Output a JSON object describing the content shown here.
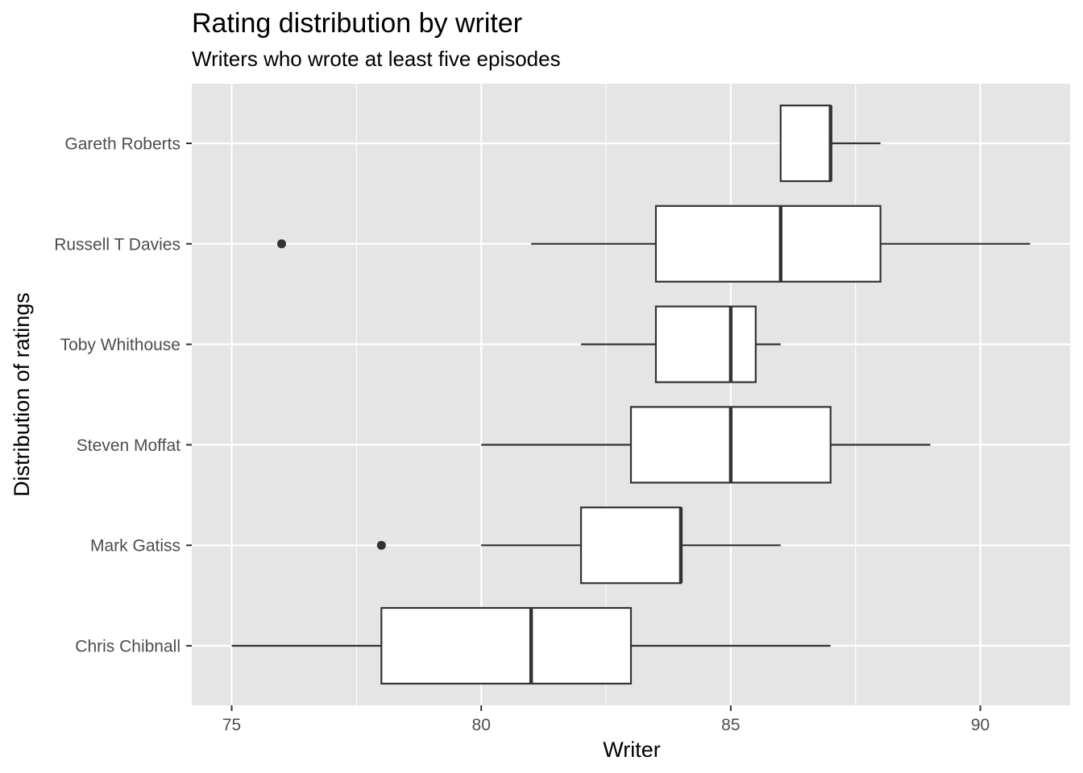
{
  "chart_data": {
    "type": "boxplot",
    "orientation": "horizontal",
    "title": "Rating distribution by writer",
    "subtitle": "Writers who wrote at least five episodes",
    "xlabel": "Writer",
    "ylabel": "Distribution of ratings",
    "xlim": [
      74.2,
      91.8
    ],
    "xticks": [
      75,
      80,
      85,
      90
    ],
    "grid": true,
    "legend": "none",
    "colors": {
      "panel": "#e5e5e5",
      "grid": "#ffffff",
      "box_fill": "#ffffff",
      "box_stroke": "#333333",
      "tick_text": "#4d4d4d"
    },
    "categories": [
      "Gareth Roberts",
      "Russell T Davies",
      "Toby Whithouse",
      "Steven Moffat",
      "Mark Gatiss",
      "Chris Chibnall"
    ],
    "boxes": [
      {
        "name": "Gareth Roberts",
        "whisker_low": 86,
        "q1": 86,
        "median": 87,
        "q3": 87,
        "whisker_high": 88,
        "outliers": []
      },
      {
        "name": "Russell T Davies",
        "whisker_low": 81,
        "q1": 83.5,
        "median": 86,
        "q3": 88,
        "whisker_high": 91,
        "outliers": [
          76
        ]
      },
      {
        "name": "Toby Whithouse",
        "whisker_low": 82,
        "q1": 83.5,
        "median": 85,
        "q3": 85.5,
        "whisker_high": 86,
        "outliers": []
      },
      {
        "name": "Steven Moffat",
        "whisker_low": 80,
        "q1": 83,
        "median": 85,
        "q3": 87,
        "whisker_high": 89,
        "outliers": []
      },
      {
        "name": "Mark Gatiss",
        "whisker_low": 80,
        "q1": 82,
        "median": 84,
        "q3": 84,
        "whisker_high": 86,
        "outliers": [
          78
        ]
      },
      {
        "name": "Chris Chibnall",
        "whisker_low": 75,
        "q1": 78,
        "median": 81,
        "q3": 83,
        "whisker_high": 87,
        "outliers": []
      }
    ]
  }
}
